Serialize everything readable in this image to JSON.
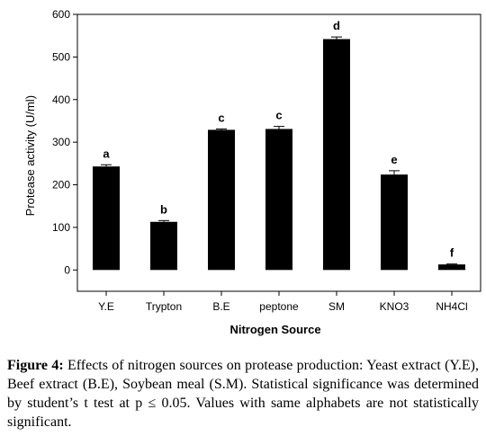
{
  "chart_data": {
    "type": "bar",
    "categories": [
      "Y.E",
      "Trypton",
      "B.E",
      "peptone",
      "SM",
      "KNO3",
      "NH4Cl"
    ],
    "values": [
      243,
      113,
      329,
      331,
      542,
      224,
      13
    ],
    "errors": [
      4,
      3,
      2,
      6,
      5,
      9,
      1
    ],
    "significance_letters": [
      "a",
      "b",
      "c",
      "c",
      "d",
      "e",
      "f"
    ],
    "xlabel": "Nitrogen Source",
    "ylabel": "Protease activity (U/ml)",
    "ylim": [
      -50,
      600
    ],
    "yticks": [
      0,
      100,
      200,
      300,
      400,
      500,
      600
    ],
    "bar_color": "#000000"
  },
  "caption": {
    "label": "Figure 4:",
    "text": "Effects of nitrogen sources on protease production: Yeast extract (Y.E), Beef extract (B.E), Soybean meal (S.M). Statistical significance was determined by student’s t test at p ≤ 0.05. Values with same alphabets are not statistically significant."
  }
}
